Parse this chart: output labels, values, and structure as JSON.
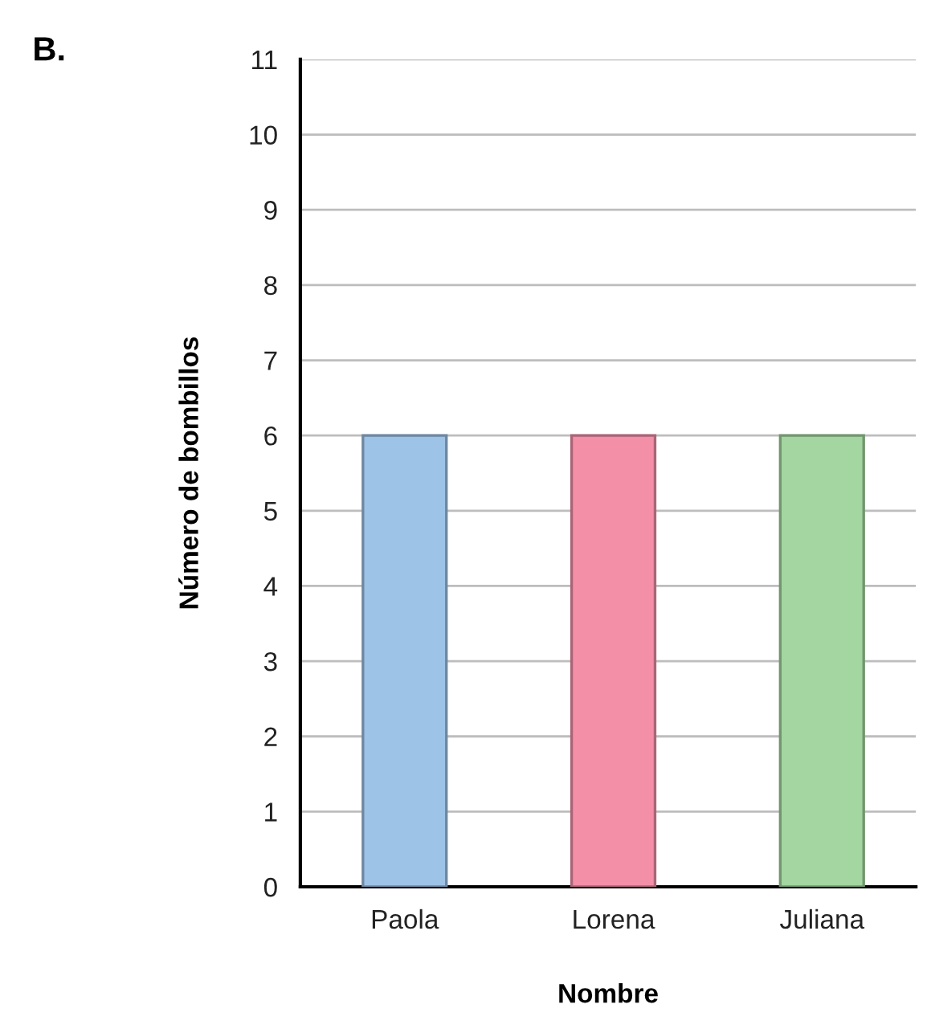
{
  "chart_data": {
    "type": "bar",
    "title": "B.",
    "xlabel": "Nombre",
    "ylabel": "Número de bombillos",
    "categories": [
      "Paola",
      "Lorena",
      "Juliana"
    ],
    "values": [
      6,
      6,
      6
    ],
    "colors": [
      "#9dc3e6",
      "#f48fa8",
      "#a3d6a0"
    ],
    "ylim": [
      0,
      11
    ],
    "yticks": [
      0,
      1,
      2,
      3,
      4,
      5,
      6,
      7,
      8,
      9,
      10,
      11
    ],
    "grid": "y",
    "legend": false
  }
}
